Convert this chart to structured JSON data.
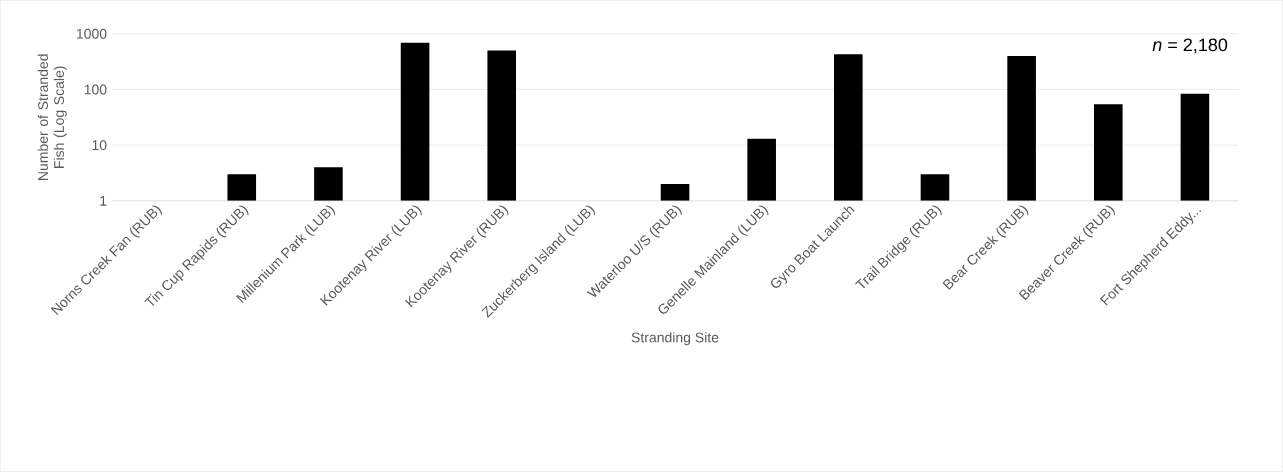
{
  "chart_data": {
    "type": "bar",
    "xlabel": "Stranding Site",
    "ylabel": "Number of Stranded Fish (Log Scale)",
    "categories": [
      "Norns Creek Fan (RUB)",
      "Tin Cup Rapids (RUB)",
      "Millenium Park (LUB)",
      "Kootenay River (LUB)",
      "Kootenay River (RUB)",
      "Zuckerberg Island (LUB)",
      "Waterloo U/S (RUB)",
      "Genelle Mainland (LUB)",
      "Gyro Boat Launch",
      "Trail Bridge (RUB)",
      "Bear Creek (RUB)",
      "Beaver Creek (RUB)",
      "Fort Shepherd Eddy..."
    ],
    "values": [
      null,
      3,
      4,
      690,
      500,
      null,
      2,
      13,
      430,
      3,
      400,
      54,
      84
    ],
    "color": "#000000",
    "log": "y",
    "ylim": [
      1,
      1000
    ],
    "yticks": [
      1,
      10,
      100,
      1000
    ],
    "grid": "y",
    "annotations": [
      "*n* = 2,180"
    ]
  }
}
